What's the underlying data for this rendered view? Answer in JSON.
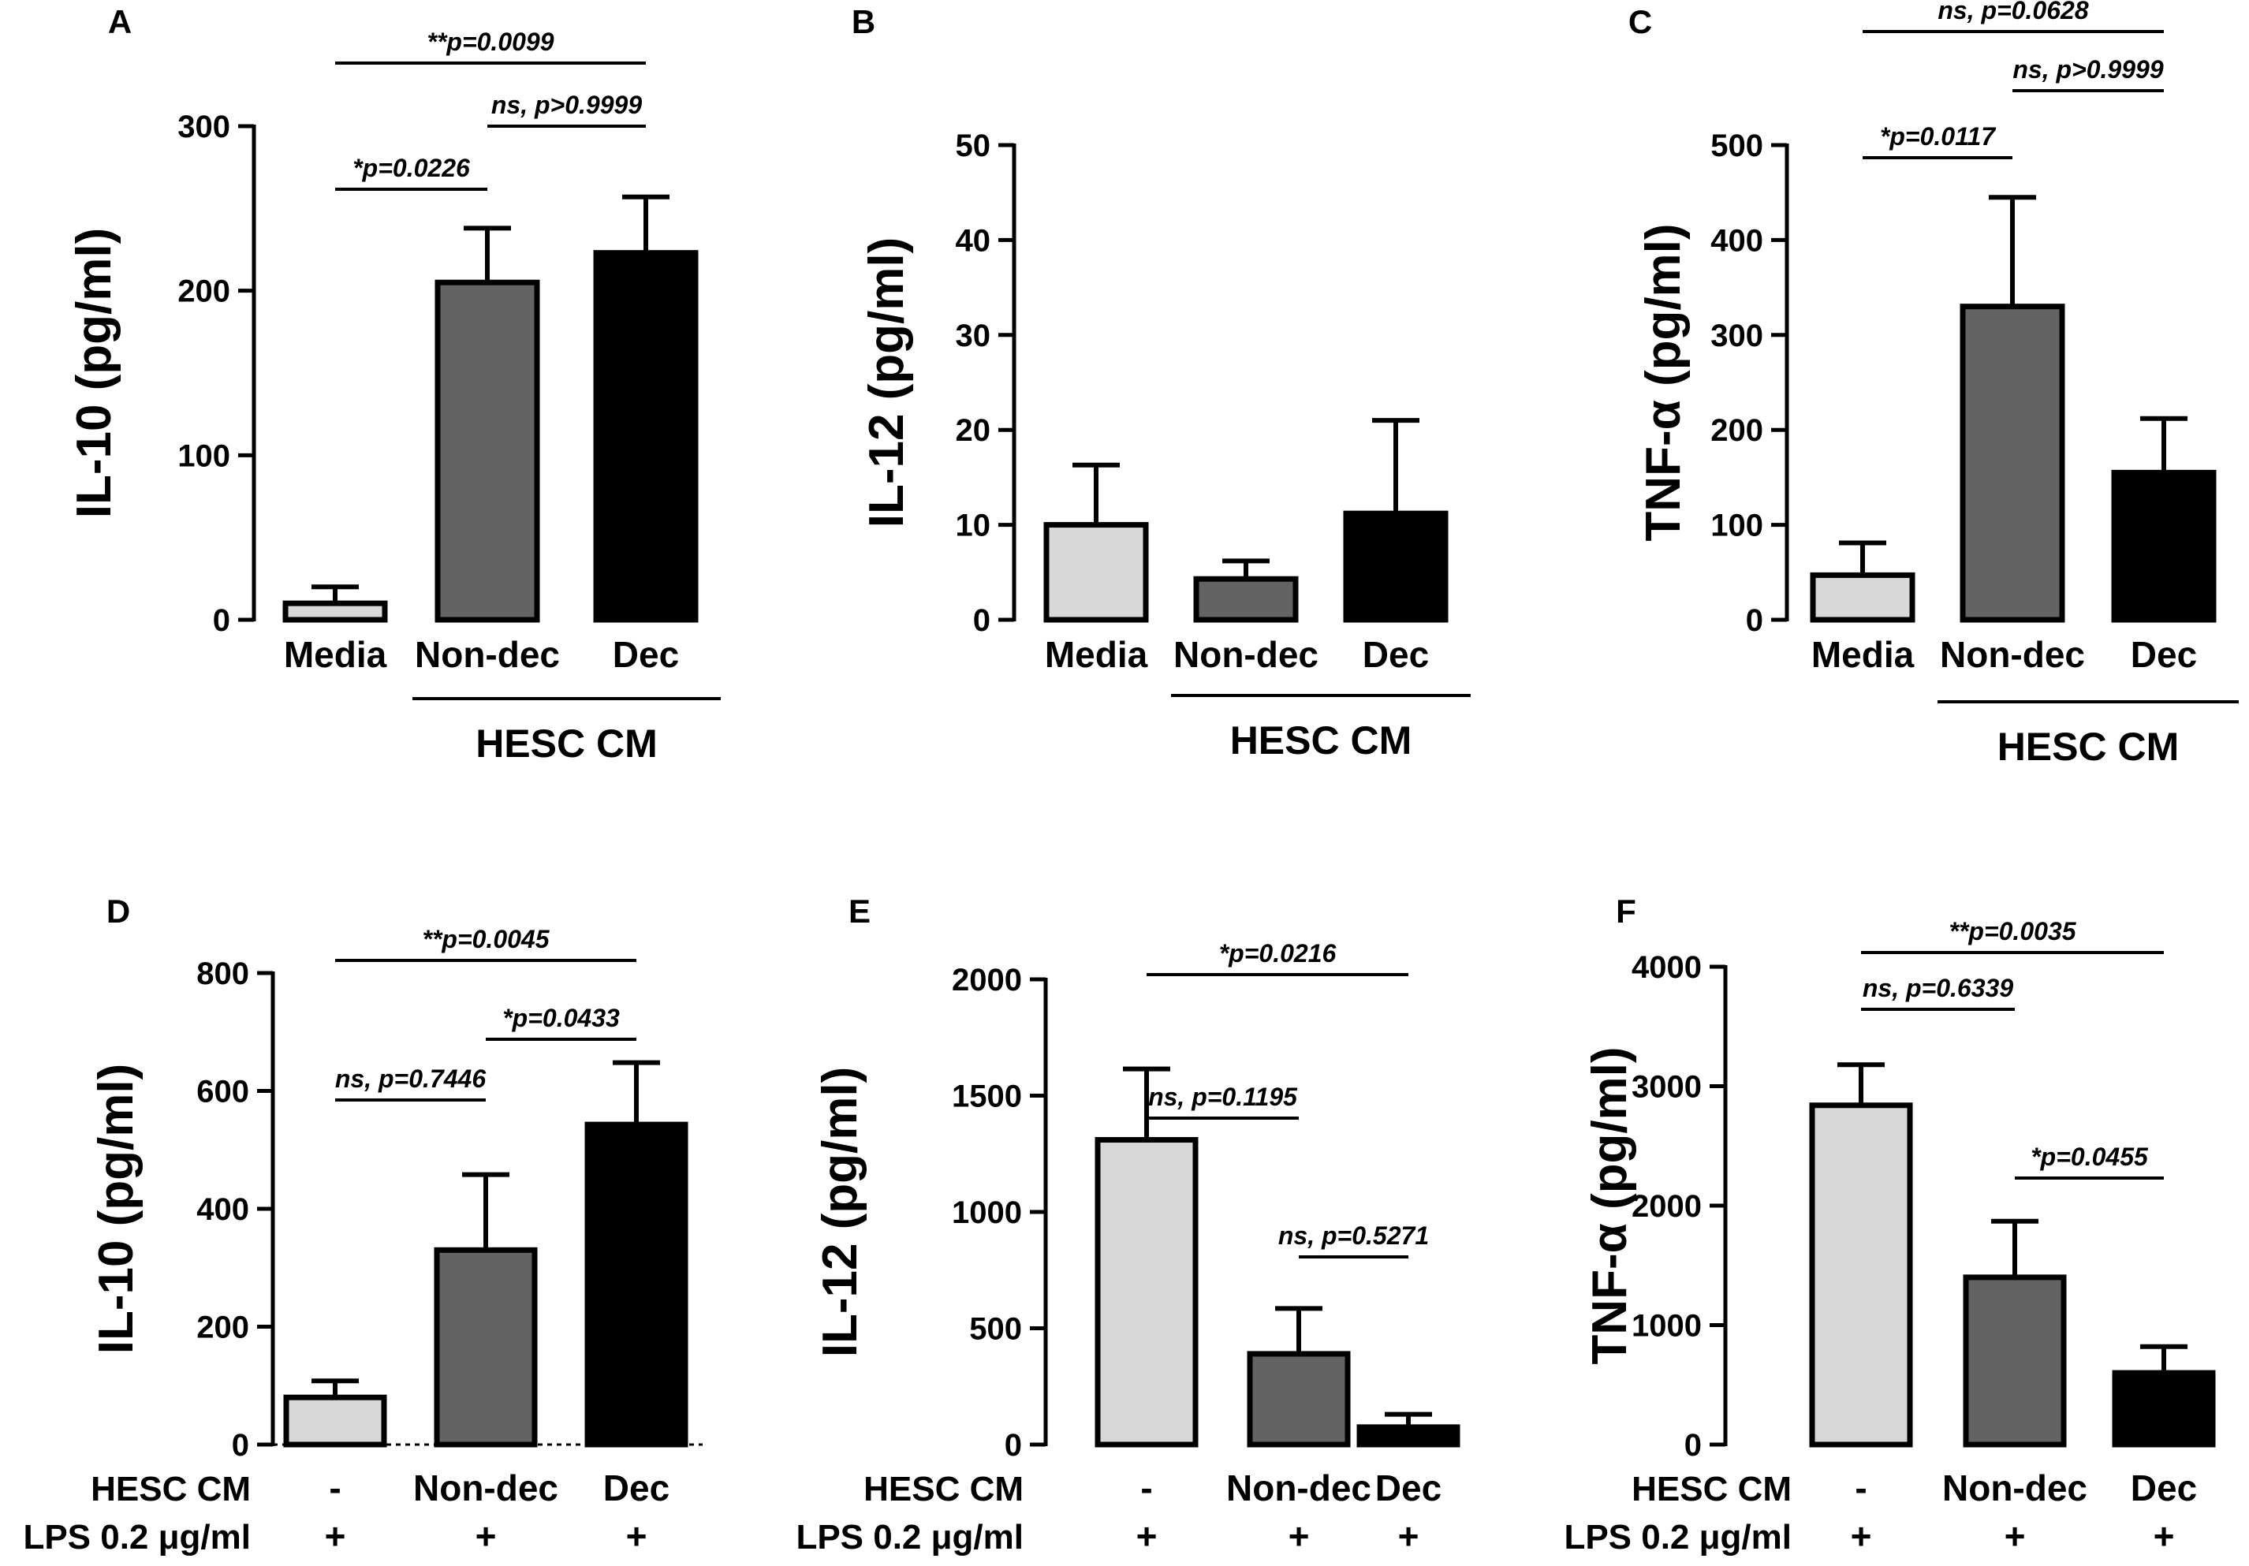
{
  "colors": {
    "Media": "#d8d8d8",
    "Non-dec": "#636363",
    "Dec": "#000000",
    "-": "#d8d8d8"
  },
  "chart_data": [
    {
      "panel": "A",
      "type": "bar",
      "ylabel": "IL-10 (pg/ml)",
      "categories": [
        "Media",
        "Non-dec",
        "Dec"
      ],
      "values": [
        10,
        205,
        223
      ],
      "errors": [
        10,
        33,
        34
      ],
      "ylim": [
        0,
        300
      ],
      "yticks": [
        "0",
        "100",
        "200",
        "300"
      ],
      "group_label": "HESC CM",
      "group_span": [
        1,
        2
      ],
      "annotations": [
        {
          "text": "*p=0.0226",
          "from": 0,
          "to": 1,
          "level": 1
        },
        {
          "text": "ns, p>0.9999",
          "from": 1,
          "to": 2,
          "level": 2
        },
        {
          "text": "**p=0.0099",
          "from": 0,
          "to": 2,
          "level": 3
        }
      ]
    },
    {
      "panel": "B",
      "type": "bar",
      "ylabel": "IL-12 (pg/ml)",
      "categories": [
        "Media",
        "Non-dec",
        "Dec"
      ],
      "values": [
        10,
        4.3,
        11.2
      ],
      "errors": [
        6.3,
        1.9,
        9.8
      ],
      "ylim": [
        0,
        50
      ],
      "yticks": [
        "0",
        "10",
        "20",
        "30",
        "40",
        "50"
      ],
      "group_label": "HESC CM",
      "group_span": [
        1,
        2
      ],
      "annotations": []
    },
    {
      "panel": "C",
      "type": "bar",
      "ylabel": "TNF-α (pg/ml)",
      "categories": [
        "Media",
        "Non-dec",
        "Dec"
      ],
      "values": [
        47,
        330,
        155
      ],
      "errors": [
        34,
        115,
        57
      ],
      "ylim": [
        0,
        500
      ],
      "yticks": [
        "0",
        "100",
        "200",
        "300",
        "400",
        "500"
      ],
      "group_label": "HESC CM",
      "group_span": [
        1,
        2
      ],
      "annotations": [
        {
          "text": "*p=0.0117",
          "from": 0,
          "to": 1,
          "level": 1
        },
        {
          "text": "ns, p>0.9999",
          "from": 1,
          "to": 2,
          "level": 2
        },
        {
          "text": "ns, p=0.0628",
          "from": 0,
          "to": 2,
          "level": 3
        }
      ]
    },
    {
      "panel": "D",
      "type": "bar",
      "ylabel": "IL-10 (pg/ml)",
      "categories": [
        "-",
        "Non-dec",
        "Dec"
      ],
      "values": [
        80,
        330,
        543
      ],
      "errors": [
        28,
        128,
        105
      ],
      "ylim": [
        0,
        800
      ],
      "yticks": [
        "0",
        "200",
        "400",
        "600",
        "800"
      ],
      "row_labels": [
        "HESC CM",
        "LPS 0.2 μg/ml"
      ],
      "lps_marks": [
        "+",
        "+",
        "+"
      ],
      "baseline_dotted": true,
      "annotations": [
        {
          "text": "ns, p=0.7446",
          "from": 0,
          "to": 1,
          "level": 1
        },
        {
          "text": "*p=0.0433",
          "from": 1,
          "to": 2,
          "level": 2
        },
        {
          "text": "**p=0.0045",
          "from": 0,
          "to": 2,
          "level": 3
        }
      ]
    },
    {
      "panel": "E",
      "type": "bar",
      "ylabel": "IL-12 (pg/ml)",
      "categories": [
        "-",
        "Non-dec",
        "Dec"
      ],
      "values": [
        1310,
        390,
        75
      ],
      "errors": [
        305,
        195,
        55
      ],
      "ylim": [
        0,
        2000
      ],
      "yticks": [
        "0",
        "500",
        "1000",
        "1500",
        "2000"
      ],
      "row_labels": [
        "HESC CM",
        "LPS 0.2 μg/ml"
      ],
      "lps_marks": [
        "+",
        "+",
        "+"
      ],
      "annotations": [
        {
          "text": "ns, p=0.5271",
          "from": 1,
          "to": 2,
          "level": 1
        },
        {
          "text": "ns, p=0.1195",
          "from": 0,
          "to": 1,
          "level": 2
        },
        {
          "text": "*p=0.0216",
          "from": 0,
          "to": 2,
          "level": 3
        }
      ]
    },
    {
      "panel": "F",
      "type": "bar",
      "ylabel": "TNF-α (pg/ml)",
      "categories": [
        "-",
        "Non-dec",
        "Dec"
      ],
      "values": [
        2840,
        1400,
        600
      ],
      "errors": [
        340,
        470,
        220
      ],
      "ylim": [
        0,
        4000
      ],
      "yticks": [
        "0",
        "1000",
        "2000",
        "3000",
        "4000"
      ],
      "row_labels": [
        "HESC CM",
        "LPS 0.2 μg/ml"
      ],
      "lps_marks": [
        "+",
        "+",
        "+"
      ],
      "annotations": [
        {
          "text": "*p=0.0455",
          "from": 1,
          "to": 2,
          "level": 1
        },
        {
          "text": "ns, p=0.6339",
          "from": 0,
          "to": 1,
          "level": 2
        },
        {
          "text": "**p=0.0035",
          "from": 0,
          "to": 2,
          "level": 3
        }
      ]
    }
  ]
}
